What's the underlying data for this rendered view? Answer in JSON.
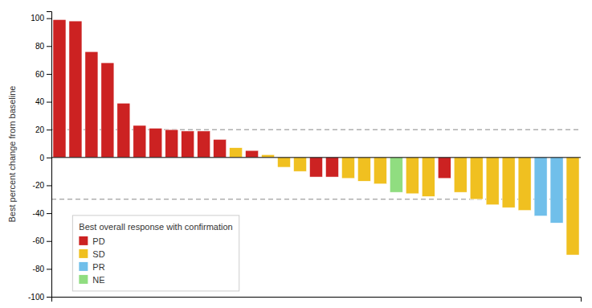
{
  "chart_data": {
    "type": "bar",
    "y_label": "Best percent change from baseline",
    "legend_title": "Best overall response with confirmation",
    "categories": [
      null,
      null,
      null,
      null,
      null,
      null,
      null,
      null,
      null,
      null,
      null,
      null,
      null,
      null,
      null,
      null,
      null,
      null,
      null,
      null,
      null,
      null,
      null,
      null,
      null,
      null,
      null,
      null,
      null,
      null,
      null,
      null,
      null
    ],
    "series": [
      {
        "name": "PD",
        "color": "#CC2222",
        "values": [
          99,
          98,
          76,
          68,
          39,
          23,
          21,
          20,
          19,
          19,
          13,
          null,
          5,
          null,
          null,
          null,
          -14,
          -14,
          null,
          null,
          null,
          null,
          null,
          null,
          -15,
          null,
          null,
          null,
          null,
          null,
          null,
          null,
          null
        ]
      },
      {
        "name": "SD",
        "color": "#F0C020",
        "values": [
          null,
          null,
          null,
          null,
          null,
          null,
          null,
          null,
          null,
          null,
          null,
          7,
          null,
          2,
          -7,
          -10,
          null,
          null,
          -15,
          -17,
          -19,
          null,
          -26,
          -28,
          null,
          -25,
          -30,
          -34,
          -36,
          -38,
          null,
          null,
          -70
        ]
      },
      {
        "name": "PR",
        "color": "#70BFEA",
        "values": [
          null,
          null,
          null,
          null,
          null,
          null,
          null,
          null,
          null,
          null,
          null,
          null,
          null,
          null,
          null,
          null,
          null,
          null,
          null,
          null,
          null,
          null,
          null,
          null,
          null,
          null,
          null,
          null,
          null,
          null,
          -42,
          -47,
          null
        ]
      },
      {
        "name": "NE",
        "color": "#90DD80",
        "values": [
          null,
          null,
          null,
          null,
          null,
          null,
          null,
          null,
          null,
          null,
          null,
          null,
          null,
          null,
          null,
          null,
          null,
          null,
          null,
          null,
          null,
          -25,
          null,
          null,
          null,
          null,
          null,
          null,
          null,
          null,
          null,
          null,
          null
        ]
      }
    ],
    "stacked": true,
    "hlines": [
      20,
      -30
    ],
    "ylim": [
      -100,
      105
    ],
    "yticks": [
      -100,
      -80,
      -60,
      -40,
      -20,
      0,
      20,
      40,
      60,
      80,
      100
    ],
    "grid": false,
    "legend": "lower left",
    "tick_labels": "y"
  }
}
